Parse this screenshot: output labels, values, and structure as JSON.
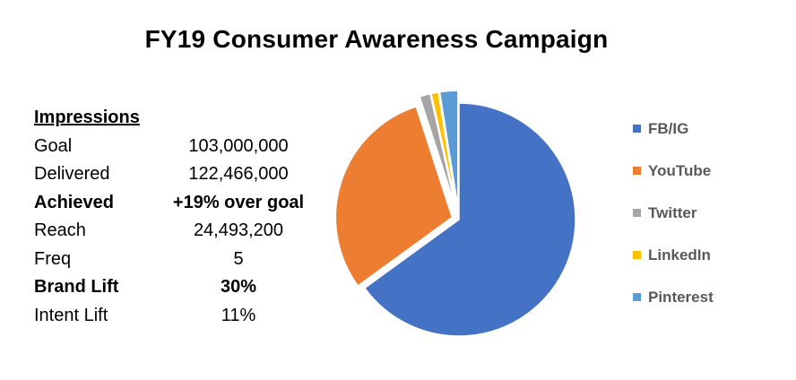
{
  "chart_data": {
    "type": "pie",
    "title": "FY19 Consumer Awareness Campaign",
    "series": [
      {
        "name": "FB/IG",
        "value": 65.0,
        "color": "#4472C4"
      },
      {
        "name": "YouTube",
        "value": 30.0,
        "color": "#ED7D31"
      },
      {
        "name": "Twitter",
        "value": 1.5,
        "color": "#A5A5A5"
      },
      {
        "name": "LinkedIn",
        "value": 1.0,
        "color": "#FFC000"
      },
      {
        "name": "Pinterest",
        "value": 2.5,
        "color": "#5B9BD5"
      }
    ],
    "legend_position": "right",
    "exploded": [
      "YouTube",
      "Twitter",
      "LinkedIn",
      "Pinterest"
    ]
  },
  "stats": {
    "heading": "Impressions",
    "rows": [
      {
        "label": "Goal",
        "value": "103,000,000",
        "bold": false
      },
      {
        "label": "Delivered",
        "value": "122,466,000",
        "bold": false
      },
      {
        "label": "Achieved",
        "value": "+19% over goal",
        "bold": true
      },
      {
        "label": "Reach",
        "value": "24,493,200",
        "bold": false
      },
      {
        "label": "Freq",
        "value": "5",
        "bold": false
      },
      {
        "label": "Brand Lift",
        "value": "30%",
        "bold": true
      },
      {
        "label": "Intent Lift",
        "value": "11%",
        "bold": false
      }
    ]
  }
}
